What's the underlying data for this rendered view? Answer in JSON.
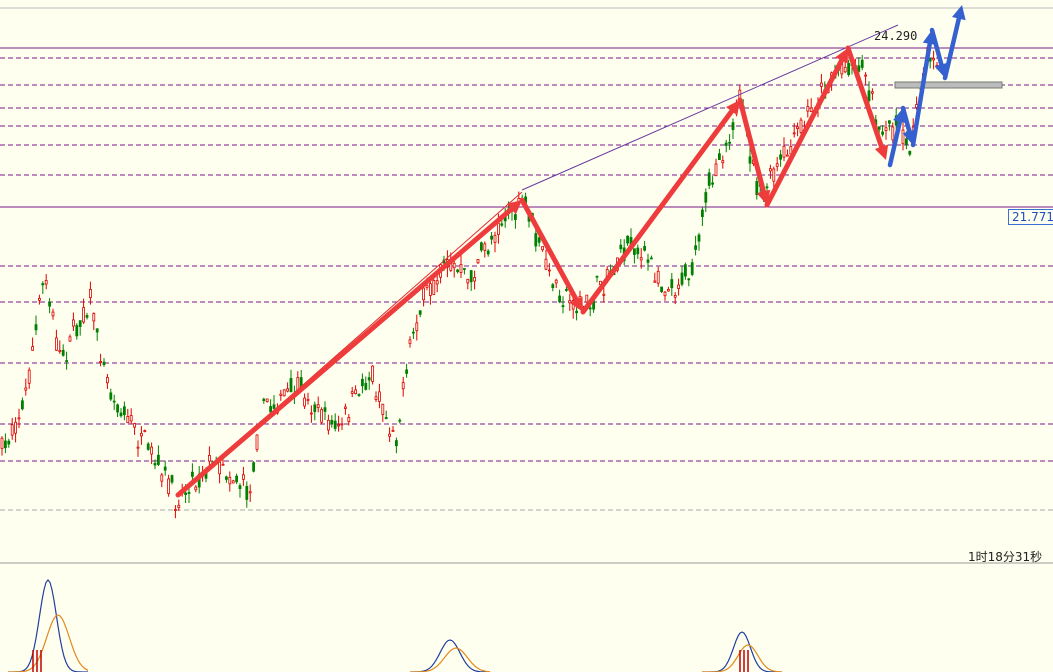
{
  "chart": {
    "price_marker": "24.290",
    "price_box": "21.771",
    "timer": "1时18分31秒"
  }
}
